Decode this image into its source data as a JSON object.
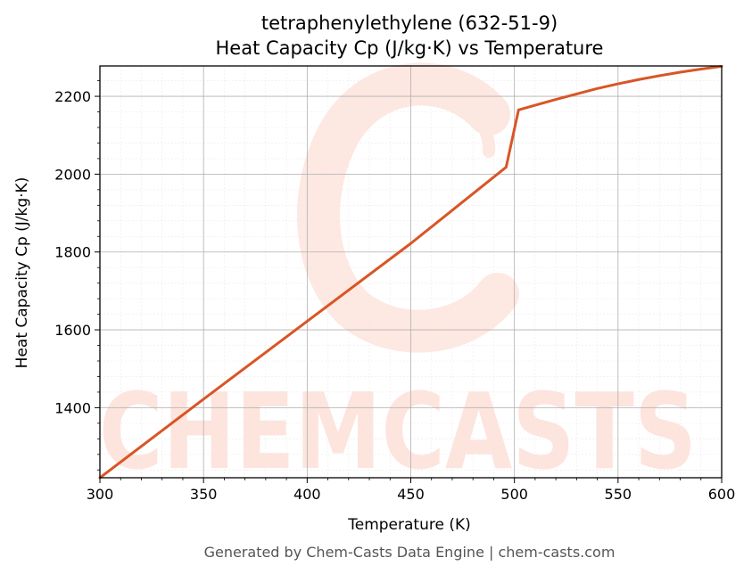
{
  "chart_data": {
    "type": "line",
    "title": "tetraphenylethylene (632-51-9)",
    "subtitle": "Heat Capacity Cp (J/kg·K) vs Temperature",
    "xlabel": "Temperature (K)",
    "ylabel": "Heat Capacity Cp (J/kg·K)",
    "xlim": [
      300,
      600
    ],
    "ylim": [
      1220,
      2278
    ],
    "xticks": [
      300,
      350,
      400,
      450,
      500,
      550,
      600
    ],
    "yticks": [
      1400,
      1600,
      1800,
      2000,
      2200
    ],
    "grid": true,
    "legend": "none",
    "series": [
      {
        "color": "#d95525",
        "x": [
          300,
          350,
          400,
          450,
          496,
          502,
          510,
          520,
          530,
          540,
          550,
          560,
          570,
          580,
          590,
          600
        ],
        "y": [
          1220,
          1422,
          1622,
          1822,
          2018,
          2165,
          2177,
          2192,
          2206,
          2220,
          2232,
          2243,
          2253,
          2262,
          2270,
          2277
        ]
      }
    ]
  },
  "watermark": {
    "text": "CHEMCASTS",
    "color": "#fde0d8"
  },
  "footer": "Generated by Chem-Casts Data Engine | chem-casts.com"
}
